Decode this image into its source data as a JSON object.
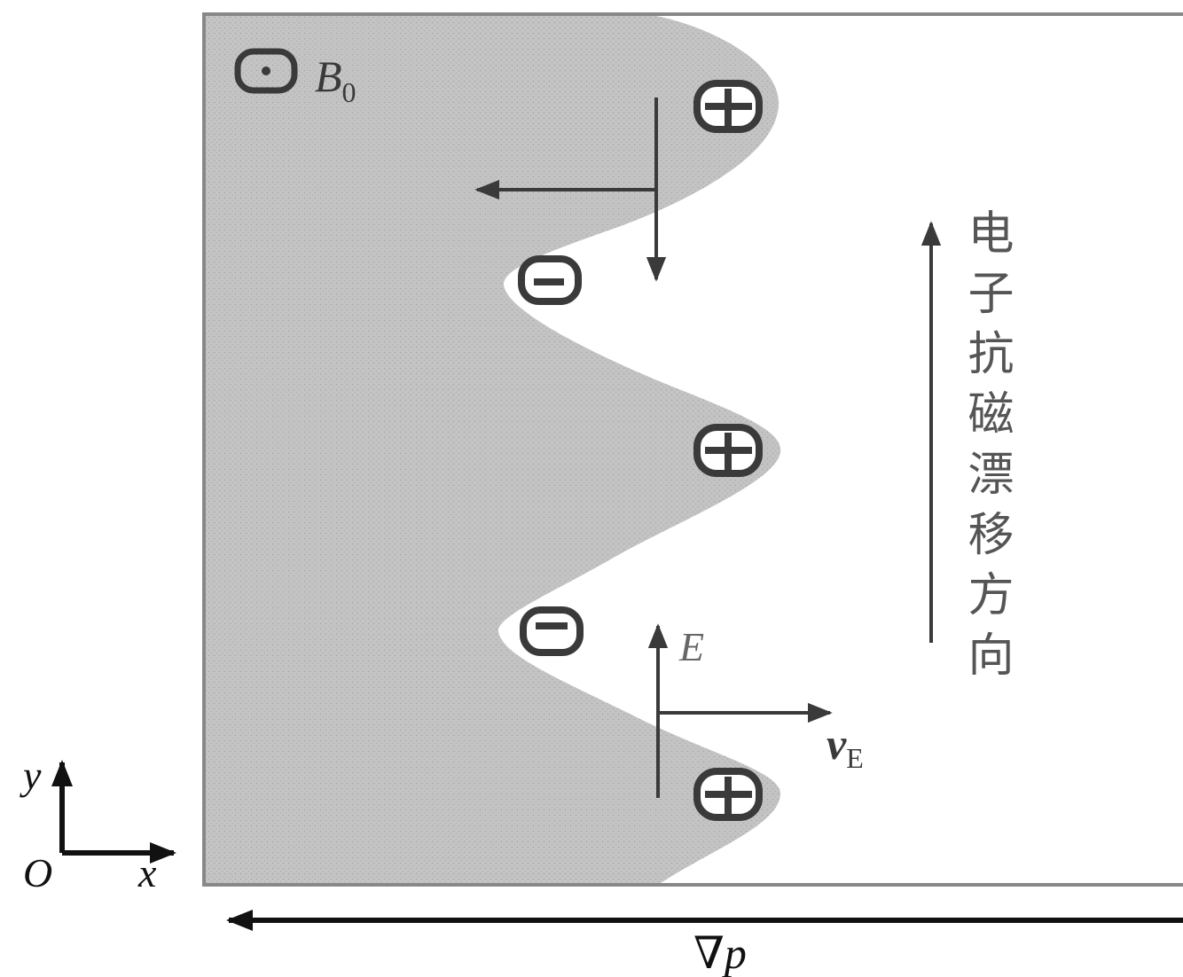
{
  "field": {
    "label": "B",
    "subscript": "0",
    "icon": "dot-in-circle-icon"
  },
  "charges": [
    {
      "sign": "+",
      "icon": "plus-charge-icon"
    },
    {
      "sign": "-",
      "icon": "minus-charge-icon"
    },
    {
      "sign": "+",
      "icon": "plus-charge-icon"
    },
    {
      "sign": "-",
      "icon": "minus-charge-icon"
    },
    {
      "sign": "+",
      "icon": "plus-charge-icon"
    }
  ],
  "vectors": {
    "e_field": "E",
    "drift_velocity": {
      "base": "v",
      "subscript": "E"
    }
  },
  "drift_direction_label": "电子抗磁漂移方向",
  "axes": {
    "y": "y",
    "x": "x",
    "origin": "O"
  },
  "gradient_label": "∇p",
  "colors": {
    "plasma": "#c4c4c4",
    "frame": "#888888",
    "ink": "#3a3a3a"
  }
}
